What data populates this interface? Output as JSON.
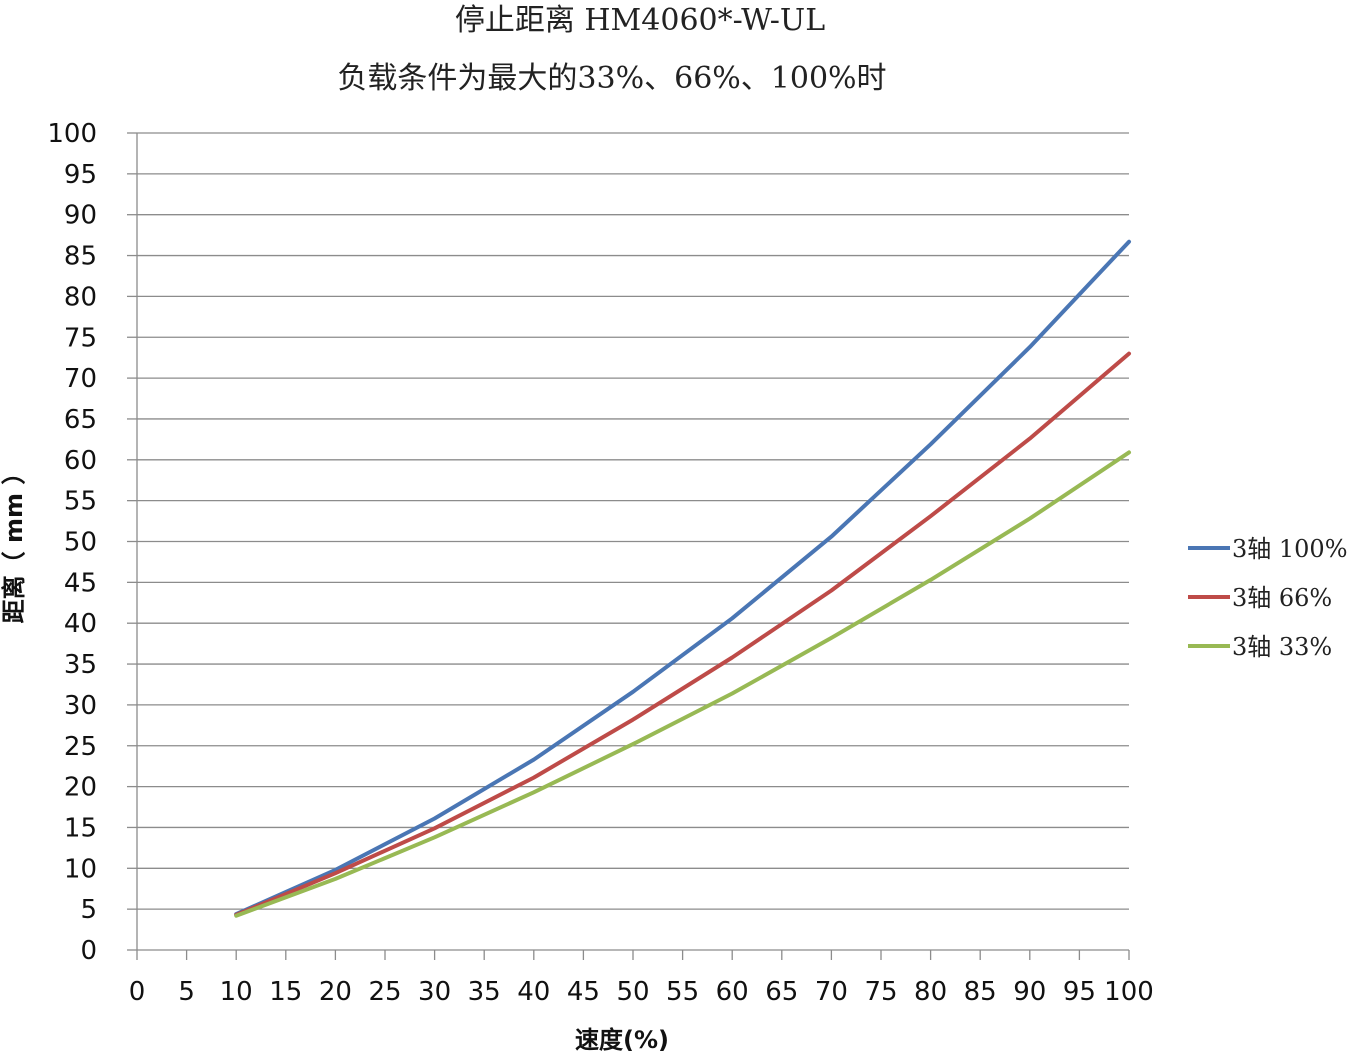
{
  "chart_data": {
    "type": "line",
    "title": "停止距离 HM4060*-W-UL",
    "subtitle": "负载条件为最大的33%、66%、100%时",
    "xlabel": "速度(%)",
    "ylabel": "距离（ mm ）",
    "xlim": [
      0,
      100
    ],
    "ylim": [
      0,
      100
    ],
    "x_ticks": [
      "0",
      "5",
      "10",
      "15",
      "20",
      "25",
      "30",
      "35",
      "40",
      "45",
      "50",
      "55",
      "60",
      "65",
      "70",
      "75",
      "80",
      "85",
      "90",
      "95",
      "100"
    ],
    "y_ticks": [
      "0",
      "5",
      "10",
      "15",
      "20",
      "25",
      "30",
      "35",
      "40",
      "45",
      "50",
      "55",
      "60",
      "65",
      "70",
      "75",
      "80",
      "85",
      "90",
      "95",
      "100"
    ],
    "grid": "horizontal",
    "legend_position": "right",
    "x": [
      10,
      20,
      30,
      40,
      50,
      60,
      70,
      80,
      90,
      100
    ],
    "series": [
      {
        "name": "3轴 100%",
        "color": "#4a76b4",
        "values": [
          4.4,
          9.8,
          16.1,
          23.3,
          31.6,
          40.6,
          50.6,
          61.9,
          73.8,
          86.7
        ]
      },
      {
        "name": "3轴 66%",
        "color": "#be4b48",
        "values": [
          4.3,
          9.4,
          14.9,
          21.1,
          28.2,
          35.8,
          44.0,
          53.1,
          62.6,
          73.0
        ]
      },
      {
        "name": "3轴 33%",
        "color": "#98b954",
        "values": [
          4.2,
          8.7,
          13.8,
          19.3,
          25.2,
          31.4,
          38.2,
          45.3,
          52.8,
          60.9
        ]
      }
    ]
  }
}
